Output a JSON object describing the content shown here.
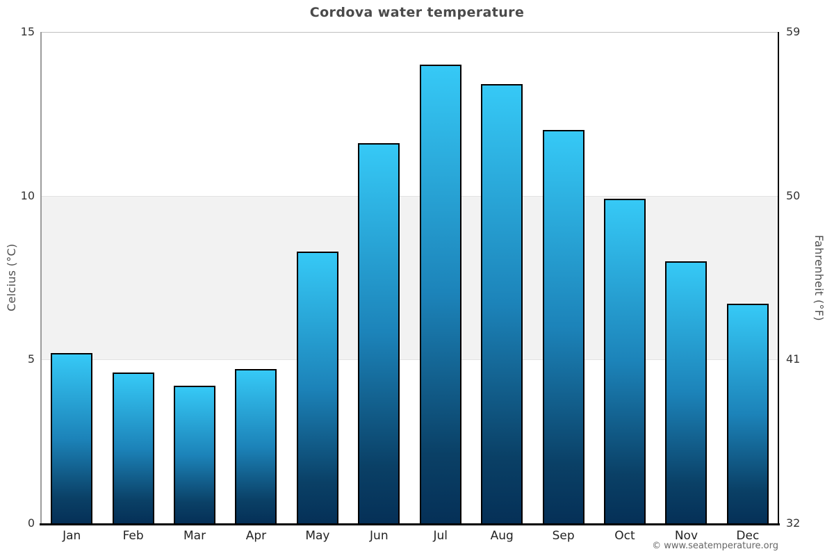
{
  "title": "Cordova water temperature",
  "credit": "© www.seatemperature.org",
  "axes": {
    "left_title": "Celcius (°C)",
    "right_title": "Fahrenheit (°F)",
    "celsius_ticks": [
      "15",
      "10",
      "5",
      "0"
    ],
    "fahrenheit_ticks": [
      "59",
      "50",
      "41",
      "32"
    ]
  },
  "chart_data": {
    "type": "bar",
    "title": "Cordova water temperature",
    "categories": [
      "Jan",
      "Feb",
      "Mar",
      "Apr",
      "May",
      "Jun",
      "Jul",
      "Aug",
      "Sep",
      "Oct",
      "Nov",
      "Dec"
    ],
    "values": [
      5.2,
      4.6,
      4.2,
      4.7,
      8.3,
      11.6,
      14.0,
      13.4,
      12.0,
      9.9,
      8.0,
      6.7
    ],
    "xlabel": "",
    "ylabel_left": "Celcius (°C)",
    "ylabel_right": "Fahrenheit (°F)",
    "ylim": [
      0,
      15
    ],
    "ylim_right_fahrenheit": [
      32,
      59
    ],
    "grid": true,
    "legend": false,
    "plot_band": {
      "from": 5,
      "to": 10,
      "color": "#f2f2f2"
    },
    "bar_gradient": [
      "#36c9f6",
      "#1c83b9",
      "#053057"
    ],
    "bar_border_color": "#000000"
  }
}
